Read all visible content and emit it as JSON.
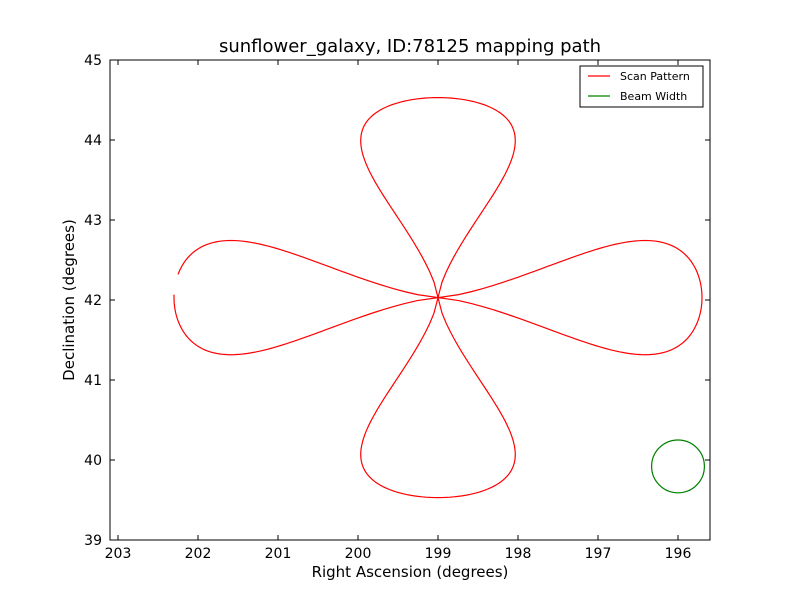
{
  "chart_data": {
    "type": "line",
    "title": "sunflower_galaxy, ID:78125 mapping path",
    "xlabel": "Right Ascension (degrees)",
    "ylabel": "Declination (degrees)",
    "xlim": [
      203.1,
      195.6
    ],
    "ylim": [
      39,
      45
    ],
    "x_inverted": true,
    "xticks": [
      203,
      202,
      201,
      200,
      199,
      198,
      197,
      196
    ],
    "yticks": [
      39,
      40,
      41,
      42,
      43,
      44,
      45
    ],
    "grid": false,
    "legend_position": "top-right",
    "series": [
      {
        "name": "Scan Pattern",
        "color": "#ff0000",
        "shape": "four-petal rose",
        "center": [
          199.0,
          42.03
        ],
        "petal_extent_ra": 3.3,
        "petal_extent_dec": 2.5,
        "petal_half_width_ra": 0.92,
        "petal_half_width_dec": 0.68,
        "path_start": [
          202.3,
          41.98
        ],
        "path_end": [
          202.45,
          42.03
        ]
      },
      {
        "name": "Beam Width",
        "color": "#008000",
        "shape": "circle",
        "center": [
          196.0,
          39.92
        ],
        "radius": 0.33
      }
    ]
  }
}
